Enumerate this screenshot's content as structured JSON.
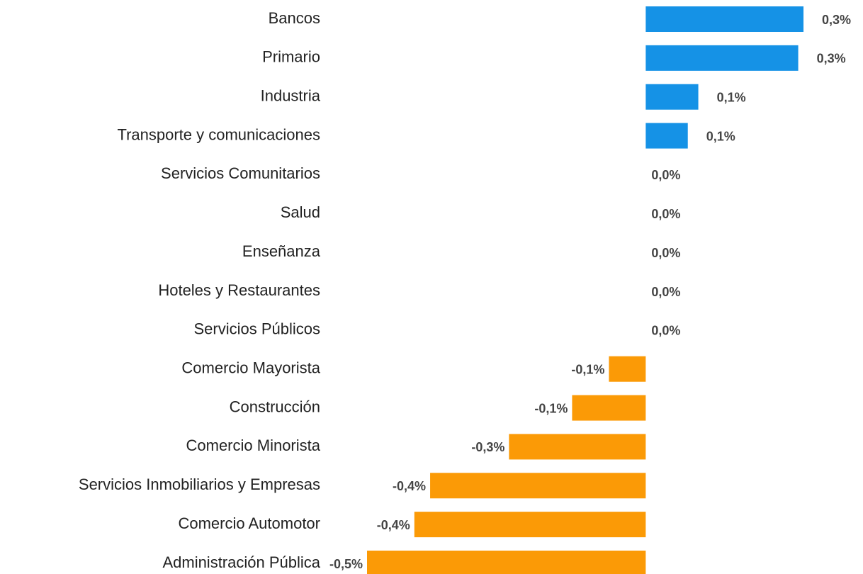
{
  "chart_data": {
    "type": "bar",
    "orientation": "horizontal",
    "categories": [
      "Bancos",
      "Primario",
      "Industria",
      "Transporte y comunicaciones",
      "Servicios Comunitarios",
      "Salud",
      "Enseñanza",
      "Hoteles y Restaurantes",
      "Servicios Públicos",
      "Comercio Mayorista",
      "Construcción",
      "Comercio Minorista",
      "Servicios Inmobiliarios y Empresas",
      "Comercio Automotor",
      "Administración Pública"
    ],
    "values": [
      0.3,
      0.29,
      0.1,
      0.08,
      0,
      0,
      0,
      0,
      0,
      -0.07,
      -0.14,
      -0.26,
      -0.41,
      -0.44,
      -0.53
    ],
    "value_labels": [
      "0,3%",
      "0,3%",
      "0,1%",
      "0,1%",
      "0,0%",
      "0,0%",
      "0,0%",
      "0,0%",
      "0,0%",
      "-0,1%",
      "-0,1%",
      "-0,3%",
      "-0,4%",
      "-0,4%",
      "-0,5%"
    ],
    "positive_color": "#1592e6",
    "negative_color": "#fb9a06"
  }
}
